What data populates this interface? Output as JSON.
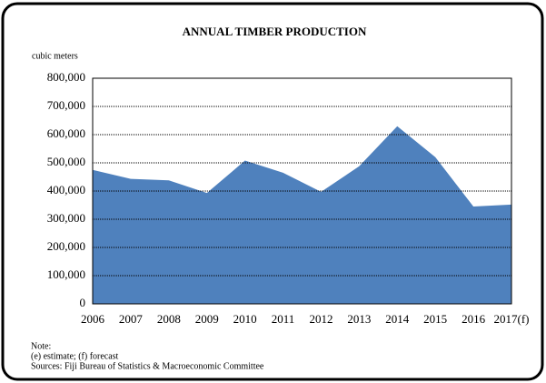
{
  "chart_data": {
    "type": "area",
    "title": "ANNUAL TIMBER PRODUCTION",
    "y_label": "cubic meters",
    "categories": [
      "2006",
      "2007",
      "2008",
      "2009",
      "2010",
      "2011",
      "2012",
      "2013",
      "2014",
      "2015",
      "2016",
      "2017(f)"
    ],
    "values": [
      475000,
      443000,
      438000,
      393000,
      508000,
      465000,
      397000,
      488000,
      630000,
      520000,
      345000,
      352000
    ],
    "color": "#4f81bd",
    "ylim": [
      0,
      800000
    ],
    "yticks": [
      0,
      {
        "value": 100000,
        "label": "100,000"
      },
      {
        "value": 200000,
        "label": "200,000"
      },
      {
        "value": 300000,
        "label": "300,000"
      },
      {
        "value": 400000,
        "label": "400,000"
      },
      {
        "value": 500000,
        "label": "500,000"
      },
      {
        "value": 600000,
        "label": "600,000"
      },
      {
        "value": 700000,
        "label": "700,000"
      },
      {
        "value": 800000,
        "label": "800,000"
      }
    ],
    "grid": true,
    "notes": [
      "Note:",
      "(e) estimate; (f) forecast",
      "Sources:  Fiji Bureau of Statistics & Macroeconomic Committee"
    ]
  }
}
